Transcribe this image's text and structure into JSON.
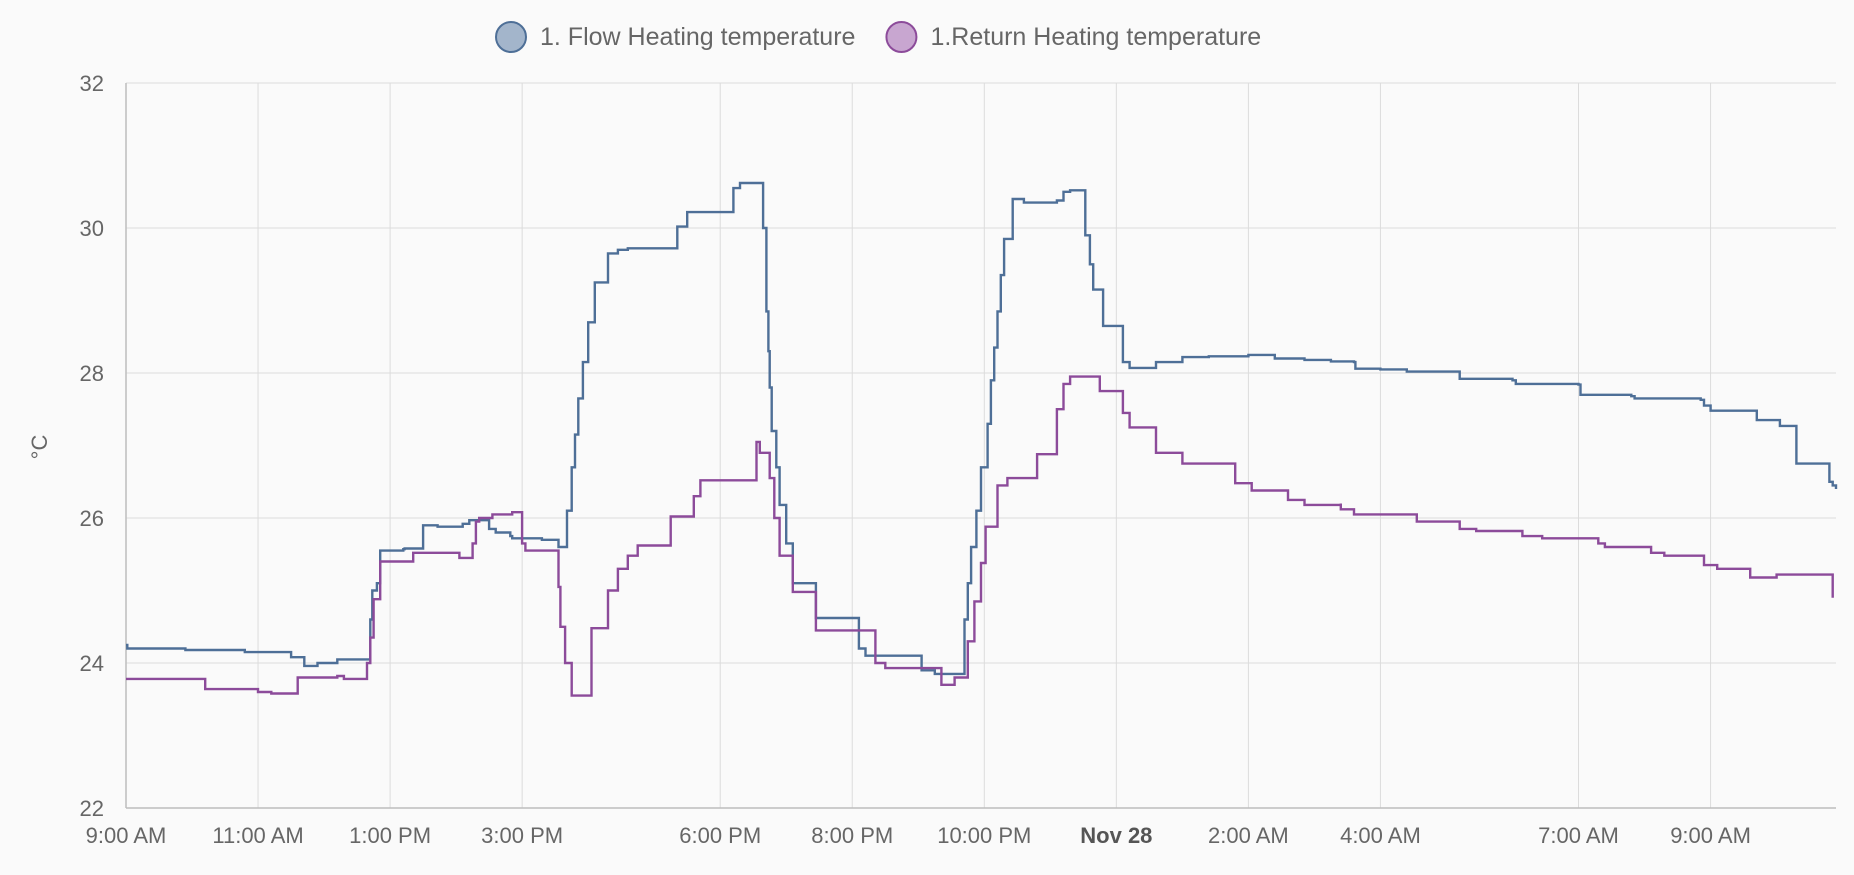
{
  "chart_data": {
    "type": "line",
    "ylabel": "°C",
    "ylim": [
      22,
      32
    ],
    "y_ticks": [
      22,
      24,
      26,
      28,
      30,
      32
    ],
    "x_range_hours": [
      9,
      34.9
    ],
    "x_ticks": [
      {
        "hour": 9,
        "label": "9:00 AM",
        "bold": false
      },
      {
        "hour": 11,
        "label": "11:00 AM",
        "bold": false
      },
      {
        "hour": 13,
        "label": "1:00 PM",
        "bold": false
      },
      {
        "hour": 15,
        "label": "3:00 PM",
        "bold": false
      },
      {
        "hour": 18,
        "label": "6:00 PM",
        "bold": false
      },
      {
        "hour": 20,
        "label": "8:00 PM",
        "bold": false
      },
      {
        "hour": 22,
        "label": "10:00 PM",
        "bold": false
      },
      {
        "hour": 24,
        "label": "Nov 28",
        "bold": true
      },
      {
        "hour": 26,
        "label": "2:00 AM",
        "bold": false
      },
      {
        "hour": 28,
        "label": "4:00 AM",
        "bold": false
      },
      {
        "hour": 31,
        "label": "7:00 AM",
        "bold": false
      },
      {
        "hour": 33,
        "label": "9:00 AM",
        "bold": false
      }
    ],
    "grid": true,
    "legend_position": "top-center",
    "step": true,
    "series": [
      {
        "name": "1. Flow Heating temperature",
        "color": "#4e6f97",
        "fill": "#a3b5cb",
        "points": [
          [
            9.0,
            24.25
          ],
          [
            9.02,
            24.2
          ],
          [
            9.9,
            24.18
          ],
          [
            10.8,
            24.15
          ],
          [
            11.5,
            24.08
          ],
          [
            11.7,
            23.96
          ],
          [
            11.9,
            24.0
          ],
          [
            12.2,
            24.05
          ],
          [
            12.7,
            24.6
          ],
          [
            12.73,
            25.0
          ],
          [
            12.8,
            25.1
          ],
          [
            12.85,
            25.55
          ],
          [
            13.2,
            25.57
          ],
          [
            13.2,
            25.57
          ],
          [
            13.22,
            25.58
          ],
          [
            13.5,
            25.9
          ],
          [
            13.72,
            25.88
          ],
          [
            13.75,
            25.88
          ],
          [
            14.1,
            25.92
          ],
          [
            14.2,
            25.97
          ],
          [
            14.5,
            25.85
          ],
          [
            14.6,
            25.8
          ],
          [
            14.82,
            25.75
          ],
          [
            14.85,
            25.72
          ],
          [
            15.0,
            25.72
          ],
          [
            15.3,
            25.7
          ],
          [
            15.55,
            25.6
          ],
          [
            15.68,
            26.1
          ],
          [
            15.75,
            26.7
          ],
          [
            15.8,
            27.15
          ],
          [
            15.85,
            27.65
          ],
          [
            15.92,
            28.15
          ],
          [
            16.0,
            28.7
          ],
          [
            16.1,
            29.25
          ],
          [
            16.3,
            29.65
          ],
          [
            16.45,
            29.7
          ],
          [
            16.6,
            29.72
          ],
          [
            17.0,
            29.72
          ],
          [
            17.35,
            30.02
          ],
          [
            17.5,
            30.22
          ],
          [
            18.2,
            30.55
          ],
          [
            18.3,
            30.62
          ],
          [
            18.65,
            30.62
          ],
          [
            18.65,
            30.0
          ],
          [
            18.7,
            28.85
          ],
          [
            18.73,
            28.3
          ],
          [
            18.75,
            27.8
          ],
          [
            18.78,
            27.2
          ],
          [
            18.85,
            26.7
          ],
          [
            18.9,
            26.18
          ],
          [
            19.0,
            25.65
          ],
          [
            19.1,
            25.1
          ],
          [
            19.45,
            24.62
          ],
          [
            20.1,
            24.6
          ],
          [
            20.1,
            24.2
          ],
          [
            20.2,
            24.1
          ],
          [
            21.0,
            24.1
          ],
          [
            21.05,
            23.9
          ],
          [
            21.25,
            23.9
          ],
          [
            21.25,
            23.85
          ],
          [
            21.7,
            23.85
          ],
          [
            21.7,
            24.6
          ],
          [
            21.75,
            25.1
          ],
          [
            21.8,
            25.6
          ],
          [
            21.88,
            26.1
          ],
          [
            21.95,
            26.7
          ],
          [
            22.05,
            27.3
          ],
          [
            22.1,
            27.9
          ],
          [
            22.15,
            28.35
          ],
          [
            22.2,
            28.85
          ],
          [
            22.25,
            29.35
          ],
          [
            22.3,
            29.85
          ],
          [
            22.43,
            30.4
          ],
          [
            22.6,
            30.35
          ],
          [
            23.1,
            30.38
          ],
          [
            23.2,
            30.5
          ],
          [
            23.3,
            30.52
          ],
          [
            23.5,
            30.52
          ],
          [
            23.53,
            29.9
          ],
          [
            23.6,
            29.5
          ],
          [
            23.65,
            29.15
          ],
          [
            23.8,
            28.65
          ],
          [
            24.1,
            28.15
          ],
          [
            24.2,
            28.07
          ],
          [
            24.6,
            28.07
          ],
          [
            24.6,
            28.15
          ],
          [
            24.95,
            28.15
          ],
          [
            25.0,
            28.22
          ],
          [
            25.4,
            28.22
          ],
          [
            25.4,
            28.23
          ],
          [
            26.0,
            28.25
          ],
          [
            26.4,
            28.25
          ],
          [
            26.4,
            28.2
          ],
          [
            26.85,
            28.18
          ],
          [
            27.25,
            28.16
          ],
          [
            27.6,
            28.15
          ],
          [
            27.62,
            28.06
          ],
          [
            28.0,
            28.05
          ],
          [
            28.4,
            28.02
          ],
          [
            29.2,
            28.0
          ],
          [
            29.2,
            27.92
          ],
          [
            30.0,
            27.9
          ],
          [
            30.05,
            27.85
          ],
          [
            31.0,
            27.84
          ],
          [
            31.03,
            27.7
          ],
          [
            31.8,
            27.68
          ],
          [
            31.85,
            27.65
          ],
          [
            32.85,
            27.63
          ],
          [
            32.9,
            27.55
          ],
          [
            33.0,
            27.48
          ],
          [
            33.7,
            27.48
          ],
          [
            33.7,
            27.35
          ],
          [
            34.0,
            27.35
          ],
          [
            34.05,
            27.27
          ],
          [
            34.3,
            27.27
          ],
          [
            34.3,
            26.75
          ],
          [
            34.75,
            26.75
          ],
          [
            34.8,
            26.5
          ],
          [
            34.85,
            26.45
          ],
          [
            34.9,
            26.4
          ]
        ]
      },
      {
        "name": "1.Return Heating temperature",
        "color": "#8c4b9a",
        "fill": "#c8a6d0",
        "points": [
          [
            9.0,
            23.78
          ],
          [
            9.2,
            23.78
          ],
          [
            10.2,
            23.78
          ],
          [
            10.2,
            23.64
          ],
          [
            11.0,
            23.64
          ],
          [
            11.0,
            23.6
          ],
          [
            11.2,
            23.6
          ],
          [
            11.2,
            23.58
          ],
          [
            11.6,
            23.58
          ],
          [
            11.6,
            23.8
          ],
          [
            12.05,
            23.8
          ],
          [
            12.2,
            23.82
          ],
          [
            12.3,
            23.78
          ],
          [
            12.65,
            23.78
          ],
          [
            12.65,
            24.0
          ],
          [
            12.7,
            24.35
          ],
          [
            12.75,
            24.88
          ],
          [
            12.85,
            25.4
          ],
          [
            13.0,
            25.4
          ],
          [
            13.3,
            25.4
          ],
          [
            13.35,
            25.52
          ],
          [
            13.7,
            25.52
          ],
          [
            14.0,
            25.52
          ],
          [
            14.05,
            25.45
          ],
          [
            14.2,
            25.45
          ],
          [
            14.25,
            25.65
          ],
          [
            14.3,
            25.95
          ],
          [
            14.35,
            26.0
          ],
          [
            14.55,
            26.0
          ],
          [
            14.55,
            26.05
          ],
          [
            14.85,
            26.08
          ],
          [
            15.0,
            26.08
          ],
          [
            15.0,
            25.65
          ],
          [
            15.05,
            25.55
          ],
          [
            15.5,
            25.55
          ],
          [
            15.55,
            25.05
          ],
          [
            15.58,
            24.5
          ],
          [
            15.65,
            24.0
          ],
          [
            15.75,
            23.55
          ],
          [
            15.95,
            23.55
          ],
          [
            16.05,
            23.55
          ],
          [
            16.05,
            24.48
          ],
          [
            16.25,
            24.48
          ],
          [
            16.3,
            25.0
          ],
          [
            16.45,
            25.3
          ],
          [
            16.6,
            25.48
          ],
          [
            16.75,
            25.62
          ],
          [
            16.95,
            25.62
          ],
          [
            17.2,
            25.62
          ],
          [
            17.25,
            26.02
          ],
          [
            17.55,
            26.02
          ],
          [
            17.6,
            26.3
          ],
          [
            17.7,
            26.52
          ],
          [
            18.5,
            26.52
          ],
          [
            18.55,
            27.05
          ],
          [
            18.6,
            26.9
          ],
          [
            18.72,
            26.9
          ],
          [
            18.75,
            26.55
          ],
          [
            18.82,
            26.0
          ],
          [
            18.9,
            25.48
          ],
          [
            19.05,
            25.48
          ],
          [
            19.1,
            24.98
          ],
          [
            19.4,
            24.98
          ],
          [
            19.45,
            24.45
          ],
          [
            20.35,
            24.45
          ],
          [
            20.35,
            24.0
          ],
          [
            20.5,
            23.93
          ],
          [
            21.35,
            23.93
          ],
          [
            21.35,
            23.7
          ],
          [
            21.55,
            23.7
          ],
          [
            21.55,
            23.8
          ],
          [
            21.7,
            23.8
          ],
          [
            21.75,
            24.3
          ],
          [
            21.85,
            24.85
          ],
          [
            21.95,
            25.38
          ],
          [
            22.02,
            25.88
          ],
          [
            22.15,
            25.88
          ],
          [
            22.2,
            26.45
          ],
          [
            22.35,
            26.55
          ],
          [
            22.8,
            26.55
          ],
          [
            22.8,
            26.88
          ],
          [
            23.1,
            26.88
          ],
          [
            23.1,
            27.5
          ],
          [
            23.2,
            27.85
          ],
          [
            23.3,
            27.95
          ],
          [
            23.75,
            27.95
          ],
          [
            23.75,
            27.75
          ],
          [
            24.05,
            27.75
          ],
          [
            24.1,
            27.45
          ],
          [
            24.2,
            27.25
          ],
          [
            24.6,
            27.25
          ],
          [
            24.6,
            26.9
          ],
          [
            25.0,
            26.9
          ],
          [
            25.0,
            26.75
          ],
          [
            25.8,
            26.75
          ],
          [
            25.8,
            26.48
          ],
          [
            26.0,
            26.48
          ],
          [
            26.05,
            26.38
          ],
          [
            26.6,
            26.38
          ],
          [
            26.6,
            26.25
          ],
          [
            26.8,
            26.25
          ],
          [
            26.85,
            26.18
          ],
          [
            27.4,
            26.2
          ],
          [
            27.4,
            26.12
          ],
          [
            27.55,
            26.12
          ],
          [
            27.6,
            26.05
          ],
          [
            27.8,
            26.05
          ],
          [
            28.55,
            26.05
          ],
          [
            28.55,
            25.95
          ],
          [
            29.2,
            25.95
          ],
          [
            29.2,
            25.85
          ],
          [
            29.45,
            25.85
          ],
          [
            29.45,
            25.82
          ],
          [
            30.15,
            25.82
          ],
          [
            30.15,
            25.75
          ],
          [
            30.45,
            25.75
          ],
          [
            30.45,
            25.72
          ],
          [
            31.3,
            25.72
          ],
          [
            31.3,
            25.65
          ],
          [
            31.4,
            25.6
          ],
          [
            32.1,
            25.6
          ],
          [
            32.1,
            25.52
          ],
          [
            32.3,
            25.52
          ],
          [
            32.3,
            25.48
          ],
          [
            32.9,
            25.48
          ],
          [
            32.9,
            25.35
          ],
          [
            33.1,
            25.35
          ],
          [
            33.1,
            25.3
          ],
          [
            33.6,
            25.3
          ],
          [
            33.6,
            25.18
          ],
          [
            34.0,
            25.18
          ],
          [
            34.0,
            25.22
          ],
          [
            34.85,
            25.22
          ],
          [
            34.85,
            24.9
          ]
        ]
      }
    ]
  }
}
